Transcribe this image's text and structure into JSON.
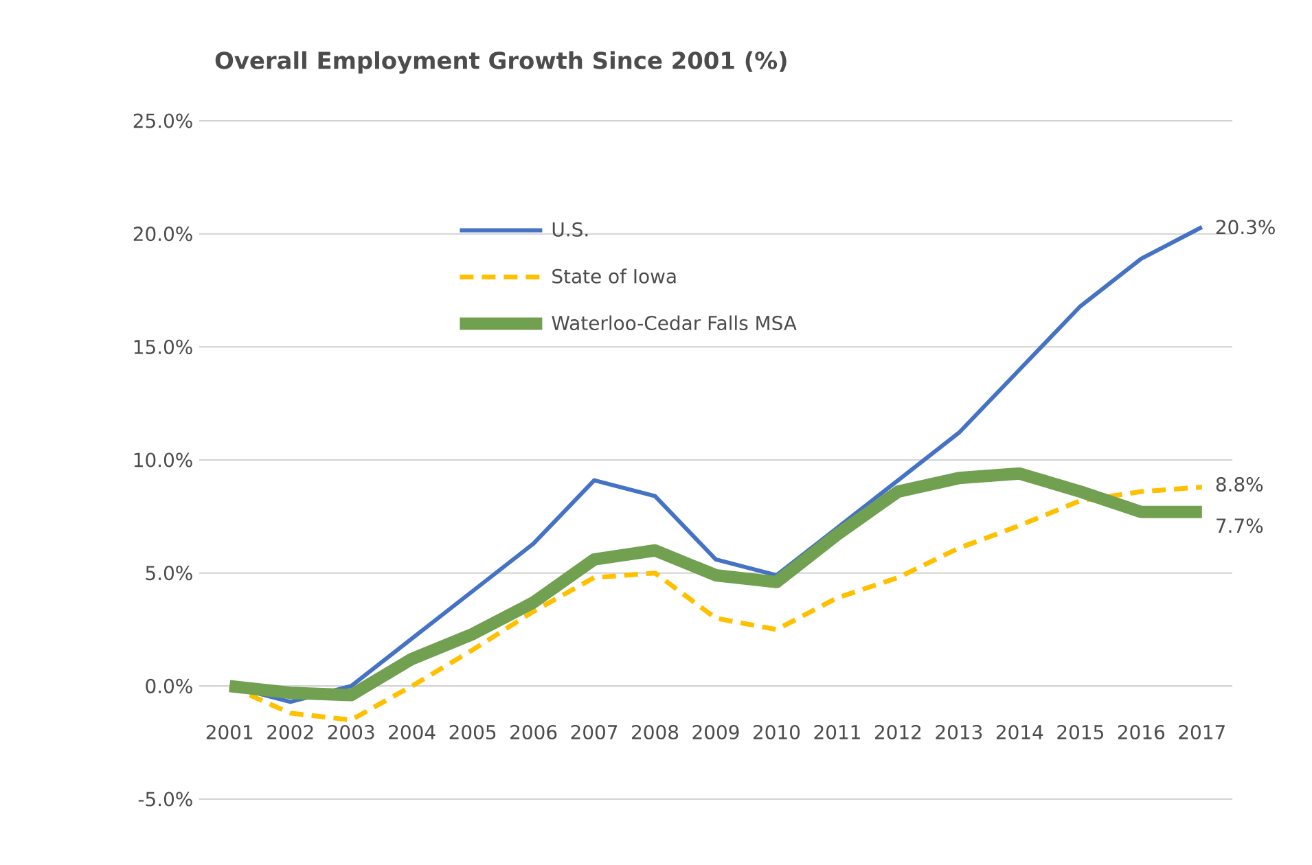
{
  "chart_data": {
    "type": "line",
    "title": "Overall Employment Growth Since 2001 (%)",
    "categories": [
      "2001",
      "2002",
      "2003",
      "2004",
      "2005",
      "2006",
      "2007",
      "2008",
      "2009",
      "2010",
      "2011",
      "2012",
      "2013",
      "2014",
      "2015",
      "2016",
      "2017"
    ],
    "series": [
      {
        "name": "U.S.",
        "color": "#4472c4",
        "line_style": "solid",
        "values": [
          0,
          -0.7,
          0,
          2.1,
          4.2,
          6.3,
          9.1,
          8.4,
          5.6,
          4.9,
          7.0,
          9.1,
          11.2,
          14.0,
          16.8,
          18.9,
          20.3
        ],
        "value_labels": [
          null,
          null,
          null,
          null,
          null,
          null,
          null,
          null,
          null,
          null,
          null,
          null,
          null,
          null,
          null,
          null,
          "20.3%"
        ]
      },
      {
        "name": "State of Iowa",
        "color": "#ffc000",
        "line_style": "dashed",
        "values": [
          0,
          -1.2,
          -1.5,
          0.0,
          1.6,
          3.3,
          4.8,
          5.0,
          3.0,
          2.5,
          3.9,
          4.8,
          6.1,
          7.1,
          8.2,
          8.6,
          8.8
        ],
        "value_labels": [
          null,
          null,
          null,
          null,
          null,
          null,
          null,
          null,
          null,
          null,
          null,
          null,
          null,
          null,
          null,
          null,
          "8.8%"
        ]
      },
      {
        "name": "Waterloo-Cedar Falls MSA",
        "color": "#70a050",
        "line_style": "solid",
        "values": [
          0,
          -0.3,
          -0.4,
          1.2,
          2.3,
          3.7,
          5.6,
          6.0,
          4.9,
          4.6,
          6.7,
          8.6,
          9.2,
          9.4,
          8.6,
          7.7,
          7.7
        ],
        "value_labels": [
          null,
          null,
          null,
          null,
          null,
          null,
          null,
          null,
          null,
          null,
          null,
          null,
          null,
          null,
          null,
          null,
          "7.7%"
        ]
      }
    ],
    "ylim": [
      -5,
      25
    ],
    "yticks": [
      {
        "value": -5,
        "label": "-5.0%"
      },
      {
        "value": 0,
        "label": "0.0%"
      },
      {
        "value": 5,
        "label": "5.0%"
      },
      {
        "value": 10,
        "label": "10.0%"
      },
      {
        "value": 15,
        "label": "15.0%"
      },
      {
        "value": 20,
        "label": "20.0%"
      },
      {
        "value": 25,
        "label": "25.0%"
      }
    ],
    "grid": "y",
    "legend": "top left",
    "marker": "none"
  }
}
